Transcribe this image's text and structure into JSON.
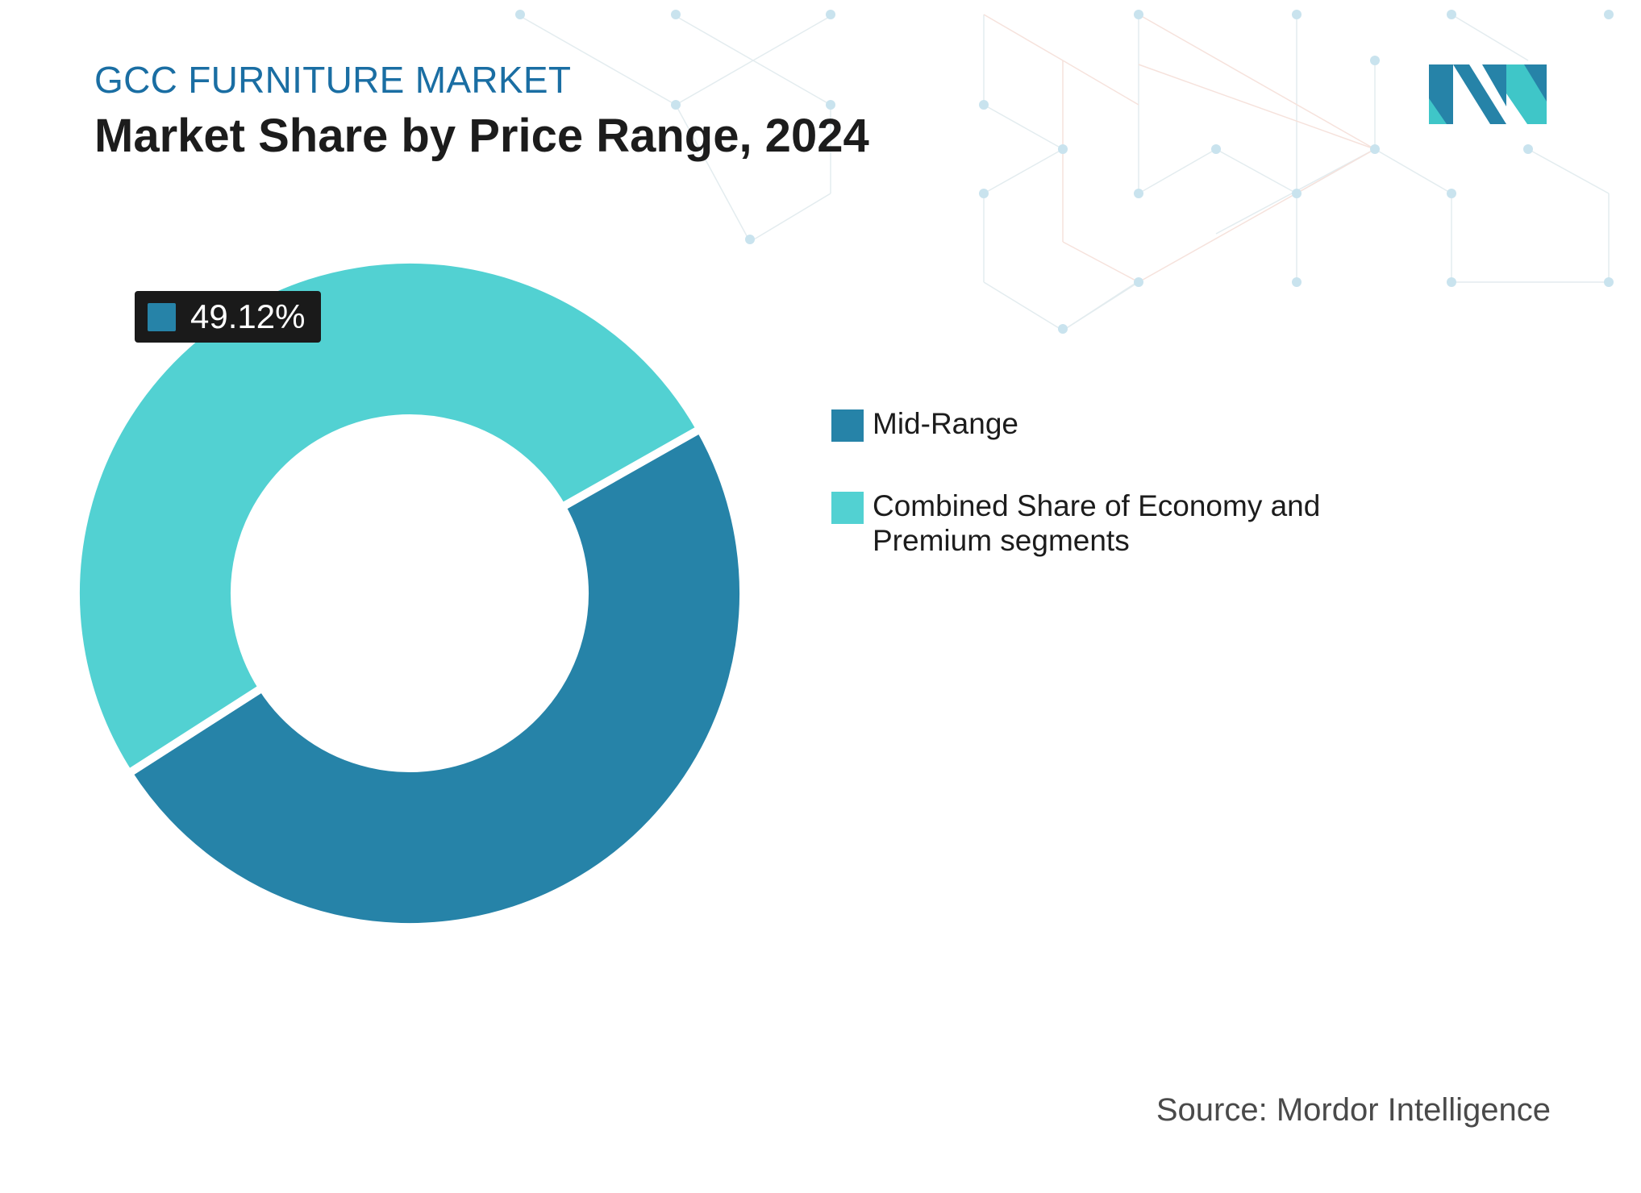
{
  "header": {
    "eyebrow": "GCC FURNITURE MARKET",
    "title": "Market Share by Price Range, 2024"
  },
  "chart_data": {
    "type": "pie",
    "variant": "donut",
    "categories": [
      "Mid-Range",
      "Combined Share of Economy and Premium segments"
    ],
    "values": [
      49.12,
      50.88
    ],
    "colors": [
      "#2683a8",
      "#52d1d2"
    ],
    "data_labels": [
      "49.12%",
      ""
    ],
    "legend_placement": "right"
  },
  "callout": {
    "value": "49.12%"
  },
  "legend": {
    "items": [
      {
        "label": "Mid-Range",
        "color": "#2683a8"
      },
      {
        "label": "Combined Share of Economy and Premium segments",
        "color": "#52d1d2"
      }
    ]
  },
  "footer": {
    "source": "Source: Mordor Intelligence"
  },
  "logo": {
    "icon": "mordor-intelligence-logo-icon",
    "colors": [
      "#2683a8",
      "#3fc6c8"
    ]
  }
}
